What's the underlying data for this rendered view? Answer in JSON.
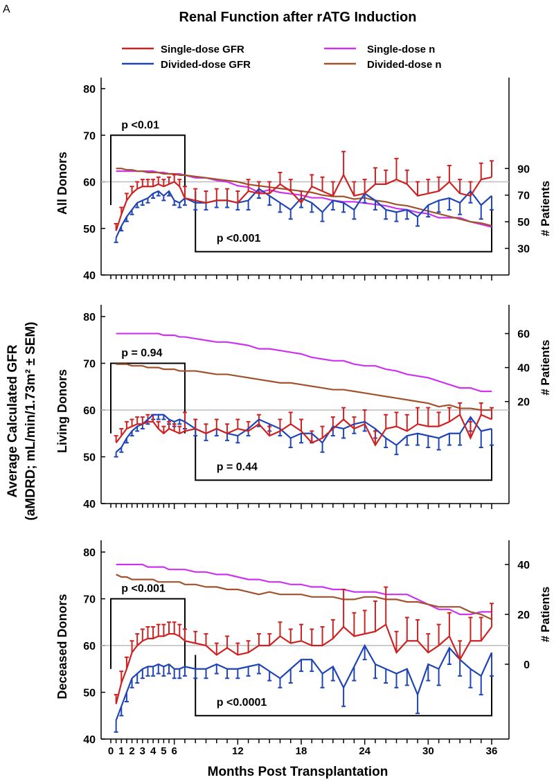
{
  "panel_letter": "A",
  "chart_data": {
    "type": "line",
    "title": "Renal Function after rATG Induction",
    "xlabel": "Months Post Transplantation",
    "ylabel_line1": "Average Calculated GFR",
    "ylabel_line2": "(aMDRD; mL/min/1.73m² ± SEM)",
    "y2label": "# Patients",
    "reference_line": 60,
    "x_ticks": [
      0,
      1,
      2,
      3,
      4,
      5,
      6,
      12,
      18,
      24,
      30,
      36
    ],
    "x_tick_labels": [
      "0",
      "1",
      "2",
      "3",
      "4",
      "5",
      "6",
      "12",
      "18",
      "24",
      "30",
      "36"
    ],
    "x_small_ticks": [
      0.5,
      1.5,
      2.5,
      3.5,
      4.5,
      5.5,
      7,
      8,
      9,
      10,
      11,
      13,
      14,
      15,
      16,
      17,
      19,
      20,
      21,
      22,
      23,
      25,
      26,
      27,
      28,
      29,
      31,
      32,
      33,
      34,
      35
    ],
    "legend": [
      {
        "label": "Single-dose GFR",
        "color": "#cc2222"
      },
      {
        "label": "Single-dose n",
        "color": "#cc33ee"
      },
      {
        "label": "Divided-dose GFR",
        "color": "#1f45b5"
      },
      {
        "label": "Divided-dose n",
        "color": "#a0522d"
      }
    ],
    "colors": {
      "single_gfr": "#cc2222",
      "divided_gfr": "#1f45b5",
      "single_n": "#cc33ee",
      "divided_n": "#a0522d",
      "ref": "#bbbbbb"
    },
    "x": [
      0.5,
      1,
      1.5,
      2,
      2.5,
      3,
      3.5,
      4,
      4.5,
      5,
      5.5,
      6,
      6.5,
      7,
      8,
      9,
      10,
      11,
      12,
      13,
      14,
      15,
      16,
      17,
      18,
      19,
      20,
      21,
      22,
      23,
      24,
      25,
      26,
      27,
      28,
      29,
      30,
      31,
      32,
      33,
      34,
      35,
      36
    ],
    "panels": [
      {
        "label": "All Donors",
        "ylim": [
          40,
          80
        ],
        "yticks": [
          40,
          50,
          60,
          70,
          80
        ],
        "y2_ticks": [
          30,
          50,
          70,
          90
        ],
        "y2_tick_labels": [
          "30",
          "50",
          "70",
          "90"
        ],
        "y2_range": [
          10,
          150
        ],
        "p_left": "p <0.01",
        "p_right": "p <0.001",
        "single_gfr": [
          49.5,
          53,
          56,
          57.5,
          58.5,
          59,
          59,
          59,
          59.5,
          59,
          59.5,
          60,
          59,
          56.5,
          56,
          55.5,
          56,
          56,
          55.5,
          58,
          57.5,
          57.5,
          59.5,
          58,
          55.5,
          59,
          58,
          57,
          61.5,
          57,
          57.5,
          59.5,
          59.5,
          60.5,
          59.5,
          57,
          57.5,
          58,
          60,
          57.5,
          57,
          60.5,
          61
        ],
        "single_err": [
          1.5,
          1.5,
          1.5,
          1.5,
          1.5,
          1.5,
          1.5,
          1.5,
          1.5,
          1.5,
          1.5,
          1.5,
          1.5,
          2.5,
          2.5,
          2.5,
          2.5,
          2.5,
          2.5,
          2.5,
          2.5,
          2.5,
          2.5,
          2.5,
          2.5,
          2.5,
          3,
          3,
          5,
          3,
          3,
          3.5,
          3,
          4.5,
          3,
          3,
          3,
          3,
          3.5,
          3,
          3,
          3.5,
          3.5
        ],
        "divided_gfr": [
          48,
          50.5,
          52.5,
          54,
          55.5,
          56,
          56.5,
          57.5,
          58,
          57,
          58,
          56,
          55.5,
          56.5,
          55.5,
          55.5,
          56,
          56,
          55.5,
          56,
          58.5,
          57,
          55.5,
          54,
          56.5,
          55.5,
          53.5,
          56,
          55.5,
          54,
          57.5,
          56,
          54,
          53.5,
          54,
          52.5,
          55,
          56,
          56.5,
          55.5,
          58,
          55,
          57
        ],
        "divided_err": [
          1,
          1,
          1,
          1,
          1,
          1,
          1,
          1,
          1,
          1,
          1,
          1,
          1,
          1.5,
          1.5,
          1.5,
          1.5,
          1.5,
          1.5,
          2,
          2,
          2,
          2,
          2,
          2,
          2,
          2,
          2,
          2,
          2,
          2,
          2,
          2,
          2,
          2,
          2,
          2.5,
          2.5,
          2.5,
          2.5,
          2.5,
          3,
          3
        ],
        "single_n": [
          88,
          88,
          88,
          88,
          88,
          88,
          88,
          88,
          87,
          87,
          86,
          86,
          86,
          85,
          83,
          83,
          81,
          80,
          77,
          76,
          72,
          74,
          72,
          71,
          70,
          68,
          68,
          66,
          65,
          65,
          64,
          63,
          62,
          60,
          59,
          57,
          56,
          53,
          53,
          53,
          50,
          48,
          46
        ],
        "divided_n": [
          90,
          90,
          89,
          89,
          88,
          88,
          87,
          87,
          87,
          86,
          86,
          86,
          85,
          85,
          84,
          83,
          82,
          81,
          80,
          78,
          77,
          76,
          75,
          74,
          73,
          72,
          70,
          69,
          69,
          67,
          68,
          66,
          65,
          63,
          62,
          60,
          58,
          56,
          54,
          52,
          50,
          49,
          47
        ]
      },
      {
        "label": "Living Donors",
        "ylim": [
          40,
          80
        ],
        "yticks": [
          40,
          50,
          60,
          70,
          80
        ],
        "y2_ticks": [
          20,
          40,
          60
        ],
        "y2_tick_labels": [
          "20",
          "40",
          "60"
        ],
        "y2_range": [
          -40,
          70
        ],
        "p_left": "p = 0.94",
        "p_right": "p = 0.44",
        "single_gfr": [
          53,
          54.5,
          56,
          56.5,
          57,
          57,
          57.5,
          57.5,
          56,
          55,
          56,
          55.5,
          55,
          55.5,
          56,
          55,
          56,
          55,
          56,
          55.5,
          57,
          54.5,
          55.5,
          57,
          55.5,
          53,
          54,
          56,
          58,
          56,
          57,
          52.5,
          56,
          56.5,
          55.5,
          57,
          56.5,
          56.5,
          57.5,
          59,
          54,
          59,
          58
        ],
        "single_err": [
          1.5,
          1.5,
          1.5,
          1.5,
          1.5,
          1.5,
          1.5,
          1.5,
          1.5,
          1.5,
          1.5,
          1.5,
          1.5,
          4,
          2,
          2,
          2,
          2,
          2,
          2,
          2,
          2,
          2.5,
          2.5,
          2.5,
          2.5,
          2.5,
          2.5,
          2.5,
          2.5,
          3,
          3,
          3,
          3,
          3.5,
          3.5,
          4,
          3,
          3,
          2.5,
          3.5,
          2.5,
          2.5
        ],
        "divided_gfr": [
          51,
          52,
          54,
          55.5,
          56.5,
          57,
          58,
          59,
          59,
          59,
          58,
          57.5,
          58,
          57.5,
          56,
          55,
          56,
          55,
          54.5,
          56,
          58,
          57,
          56,
          54,
          55,
          55,
          53,
          56.5,
          56,
          57,
          57.5,
          56,
          54,
          52.5,
          54.5,
          55,
          54.5,
          54,
          55,
          55,
          58.5,
          55.5,
          56
        ],
        "divided_err": [
          1,
          1,
          1,
          1,
          1,
          1,
          1,
          1,
          1,
          1,
          1,
          1,
          1,
          1.5,
          1.5,
          1.5,
          1.5,
          1.5,
          1.5,
          1.5,
          1.5,
          1.5,
          1.5,
          2,
          2,
          2,
          2,
          2,
          2,
          2,
          2,
          2,
          2,
          2,
          2,
          2.5,
          2.5,
          2.5,
          2.5,
          2.5,
          3,
          3.5,
          3.5
        ],
        "single_n": [
          60,
          60,
          60,
          60,
          60,
          60,
          60,
          60,
          60,
          59,
          59,
          59,
          58,
          58,
          57,
          56,
          55,
          55,
          54,
          53,
          51,
          51,
          50,
          49,
          48,
          46,
          45,
          44,
          44,
          42,
          41,
          41,
          39,
          38,
          36,
          35,
          34,
          32,
          30,
          28,
          28,
          26,
          26
        ],
        "divided_n": [
          42,
          42,
          42,
          41,
          41,
          41,
          40,
          40,
          40,
          39,
          39,
          39,
          38,
          38,
          38,
          37,
          36,
          36,
          35,
          34,
          33,
          32,
          31,
          31,
          30,
          29,
          28,
          27,
          27,
          26,
          25,
          24,
          23,
          22,
          21,
          20,
          19,
          17,
          18,
          16,
          16,
          15,
          15
        ]
      },
      {
        "label": "Deceased Donors",
        "ylim": [
          40,
          80
        ],
        "yticks": [
          40,
          50,
          60,
          70,
          80
        ],
        "y2_ticks": [
          0,
          20,
          40
        ],
        "y2_tick_labels": [
          "0",
          "20",
          "40"
        ],
        "y2_range": [
          -30,
          45
        ],
        "p_left": "p <0.001",
        "p_right": "p <0.0001",
        "single_gfr": [
          47.5,
          52,
          55,
          58.5,
          60,
          61,
          61.5,
          61.5,
          62,
          62,
          62.5,
          62.5,
          62,
          61,
          60.5,
          60,
          58,
          59.5,
          58,
          58.5,
          60,
          60,
          62,
          60.5,
          61,
          60,
          60,
          61.5,
          64,
          62,
          62.5,
          63,
          64.5,
          58.5,
          61,
          61,
          58.5,
          60,
          62,
          57,
          61,
          61,
          64
        ],
        "single_err": [
          2,
          2.5,
          2.5,
          2.5,
          2.5,
          2.5,
          2.5,
          2.5,
          2.5,
          2.5,
          2.5,
          2.5,
          2.5,
          2.5,
          2.5,
          2.5,
          2.5,
          2.5,
          2.5,
          2.5,
          2.5,
          2.5,
          3,
          3,
          3.5,
          3.5,
          4,
          4,
          8,
          5,
          5,
          6.5,
          8,
          4.5,
          5,
          4.5,
          4,
          4.5,
          5,
          4,
          5,
          5,
          5
        ],
        "divided_gfr": [
          44,
          47,
          50,
          53,
          54,
          55,
          55.5,
          55.5,
          56,
          55.5,
          56,
          55,
          55,
          55.5,
          55,
          55,
          56,
          55,
          55,
          55.5,
          56,
          54.5,
          53,
          55,
          57,
          57,
          54,
          55.5,
          51,
          55.5,
          60,
          56,
          55,
          54,
          55,
          49.5,
          56,
          55,
          59.5,
          57,
          55,
          53.5,
          58.5
        ],
        "divided_err": [
          2.5,
          2,
          2,
          2,
          2,
          2,
          2,
          2,
          2,
          2,
          2,
          2,
          2,
          2,
          2,
          2,
          2,
          2,
          2,
          2,
          2,
          2,
          2,
          3,
          2.5,
          2.5,
          3,
          3,
          4,
          3,
          3,
          3,
          3,
          3,
          3.5,
          4,
          3.5,
          3.5,
          3.5,
          3.5,
          4,
          4,
          5
        ],
        "single_n": [
          40,
          40,
          40,
          40,
          40,
          40,
          39,
          39,
          39,
          39,
          38,
          38,
          38,
          38,
          37,
          37,
          36,
          36,
          35,
          34,
          34,
          33,
          33,
          32,
          32,
          31,
          31,
          30,
          30,
          29,
          29,
          29,
          28,
          28,
          28,
          26,
          24,
          22,
          22,
          20,
          20,
          21,
          21
        ],
        "divided_n": [
          36,
          35,
          35,
          34,
          34,
          34,
          34,
          34,
          33,
          33,
          33,
          33,
          33,
          32,
          32,
          31,
          31,
          30,
          30,
          29,
          28,
          29,
          28,
          28,
          28,
          27,
          27,
          27,
          26,
          26,
          27,
          27,
          26,
          26,
          25,
          25,
          24,
          23,
          23,
          23,
          21,
          20,
          18
        ]
      }
    ]
  }
}
